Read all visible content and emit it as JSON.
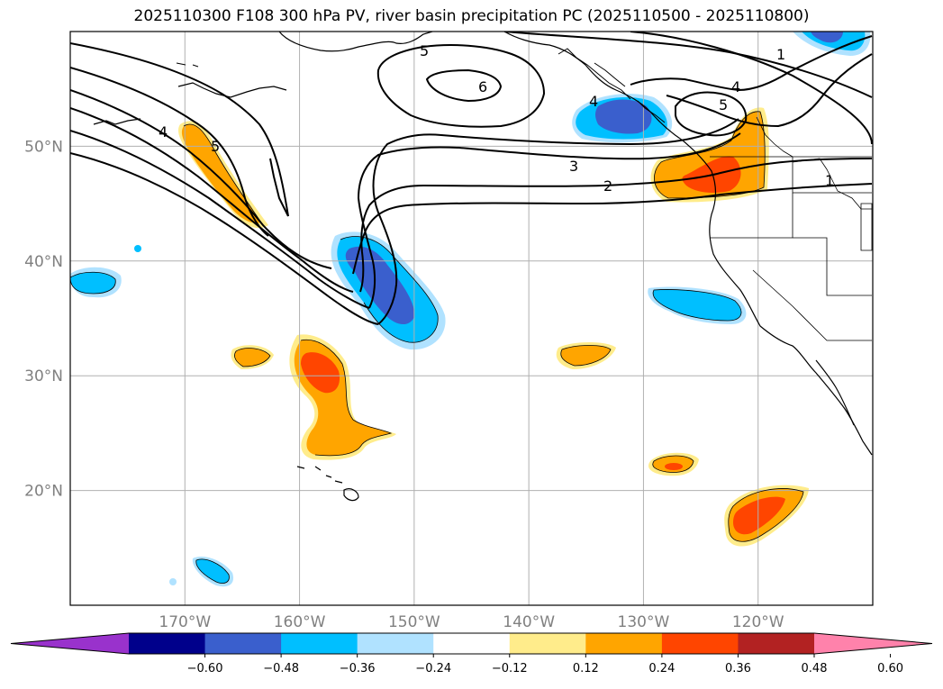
{
  "title": "2025110300 F108 300 hPa PV, river basin precipitation PC (2025110500 - 2025110800)",
  "map": {
    "lon_range": [
      -180,
      -110
    ],
    "lat_range": [
      10,
      60
    ],
    "lat_labels": [
      "20°N",
      "30°N",
      "40°N",
      "50°N"
    ],
    "lat_values": [
      20,
      30,
      40,
      50
    ],
    "lon_labels": [
      "170°W",
      "160°W",
      "150°W",
      "140°W",
      "130°W",
      "120°W"
    ],
    "lon_values": [
      -170,
      -160,
      -150,
      -140,
      -130,
      -120
    ],
    "gridlines": true,
    "pv_contour_labels": [
      "1",
      "2",
      "3",
      "4",
      "5",
      "6"
    ]
  },
  "colorbar": {
    "tick_labels": [
      "−0.60",
      "−0.48",
      "−0.36",
      "−0.24",
      "−0.12",
      "0.12",
      "0.24",
      "0.36",
      "0.48",
      "0.60"
    ],
    "colors": [
      "#9932cc",
      "#00008b",
      "#3a5fcd",
      "#00bfff",
      "#b0e2ff",
      "#ffffff",
      "#ffec8b",
      "#ffa500",
      "#ff4500",
      "#b22222",
      "#ff82ab"
    ],
    "extend": "both"
  },
  "anomaly_colors": {
    "yellow": "#ffec8b",
    "orange": "#ffa500",
    "red": "#ff4500",
    "lightblue": "#b0e2ff",
    "cyan": "#00bfff",
    "blue": "#3a5fcd"
  }
}
